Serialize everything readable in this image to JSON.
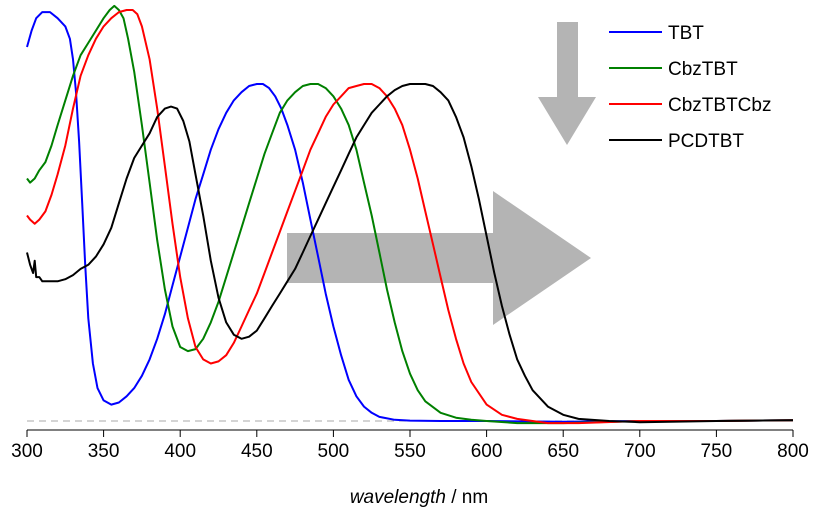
{
  "chart_data": {
    "type": "line",
    "title": "",
    "xlabel_italic": "wavelength",
    "xlabel_unit": " / nm",
    "ylabel": "",
    "xlim": [
      300,
      800
    ],
    "ylim": [
      -0.02,
      1.04
    ],
    "x_ticks": [
      "300",
      "350",
      "400",
      "450",
      "500",
      "550",
      "600",
      "650",
      "700",
      "750",
      "800"
    ],
    "baseline_dashed": true,
    "legend_position": "top-right",
    "annotations": [
      "down-arrow",
      "right-arrow"
    ],
    "series": [
      {
        "name": "TBT",
        "color": "#0000ff",
        "x": [
          300,
          303,
          306,
          310,
          315,
          320,
          325,
          328,
          330,
          332,
          334,
          336,
          338,
          340,
          343,
          346,
          350,
          355,
          360,
          365,
          370,
          375,
          380,
          385,
          390,
          395,
          400,
          405,
          410,
          415,
          420,
          425,
          430,
          435,
          440,
          445,
          450,
          454,
          458,
          462,
          466,
          470,
          475,
          480,
          485,
          490,
          495,
          500,
          505,
          510,
          515,
          520,
          525,
          530,
          540,
          550,
          570,
          600,
          650,
          700,
          750,
          800
        ],
        "y": [
          0.91,
          0.95,
          0.98,
          0.995,
          0.995,
          0.98,
          0.96,
          0.93,
          0.88,
          0.8,
          0.68,
          0.53,
          0.38,
          0.25,
          0.14,
          0.08,
          0.05,
          0.04,
          0.045,
          0.06,
          0.08,
          0.11,
          0.15,
          0.2,
          0.26,
          0.33,
          0.4,
          0.47,
          0.54,
          0.6,
          0.66,
          0.71,
          0.75,
          0.78,
          0.8,
          0.815,
          0.82,
          0.82,
          0.81,
          0.79,
          0.76,
          0.72,
          0.66,
          0.58,
          0.49,
          0.4,
          0.31,
          0.23,
          0.16,
          0.1,
          0.06,
          0.035,
          0.02,
          0.01,
          0.003,
          0.001,
          0.0,
          0.0,
          -0.002,
          0.0,
          0.0,
          0.002
        ]
      },
      {
        "name": "CbzTBT",
        "color": "#008000",
        "x": [
          300,
          302,
          305,
          308,
          312,
          316,
          320,
          325,
          330,
          335,
          340,
          345,
          350,
          354,
          357,
          360,
          363,
          366,
          370,
          375,
          380,
          385,
          390,
          395,
          400,
          405,
          410,
          415,
          420,
          425,
          430,
          435,
          440,
          445,
          450,
          455,
          460,
          465,
          470,
          475,
          480,
          485,
          490,
          495,
          500,
          505,
          510,
          515,
          520,
          525,
          530,
          535,
          540,
          545,
          550,
          555,
          560,
          570,
          580,
          590,
          600,
          620,
          650,
          700,
          750,
          800
        ],
        "y": [
          0.59,
          0.58,
          0.59,
          0.61,
          0.63,
          0.67,
          0.72,
          0.78,
          0.84,
          0.89,
          0.92,
          0.95,
          0.98,
          1.0,
          1.01,
          1.0,
          0.98,
          0.93,
          0.85,
          0.72,
          0.58,
          0.44,
          0.32,
          0.23,
          0.18,
          0.17,
          0.175,
          0.2,
          0.24,
          0.29,
          0.35,
          0.41,
          0.47,
          0.53,
          0.59,
          0.65,
          0.7,
          0.75,
          0.78,
          0.8,
          0.815,
          0.82,
          0.82,
          0.81,
          0.79,
          0.76,
          0.72,
          0.66,
          0.58,
          0.5,
          0.41,
          0.32,
          0.24,
          0.17,
          0.115,
          0.075,
          0.048,
          0.02,
          0.008,
          0.003,
          0.0,
          -0.005,
          -0.005,
          0.0,
          0.0,
          0.002
        ]
      },
      {
        "name": "CbzTBTCbz",
        "color": "#ff0000",
        "x": [
          300,
          302,
          305,
          308,
          312,
          316,
          320,
          325,
          330,
          335,
          340,
          345,
          350,
          355,
          360,
          365,
          369,
          372,
          375,
          380,
          385,
          390,
          395,
          400,
          405,
          410,
          415,
          420,
          425,
          430,
          435,
          440,
          445,
          450,
          455,
          460,
          465,
          470,
          475,
          480,
          485,
          490,
          495,
          500,
          505,
          510,
          515,
          520,
          525,
          530,
          535,
          540,
          545,
          550,
          555,
          560,
          565,
          570,
          575,
          580,
          585,
          590,
          600,
          610,
          620,
          640,
          660,
          700,
          750,
          800
        ],
        "y": [
          0.5,
          0.49,
          0.48,
          0.49,
          0.51,
          0.55,
          0.6,
          0.67,
          0.76,
          0.84,
          0.89,
          0.93,
          0.96,
          0.98,
          0.995,
          1.0,
          1.0,
          0.99,
          0.96,
          0.88,
          0.76,
          0.62,
          0.48,
          0.35,
          0.25,
          0.18,
          0.15,
          0.14,
          0.145,
          0.16,
          0.19,
          0.23,
          0.27,
          0.31,
          0.36,
          0.41,
          0.46,
          0.51,
          0.56,
          0.61,
          0.66,
          0.7,
          0.74,
          0.77,
          0.79,
          0.81,
          0.815,
          0.82,
          0.82,
          0.81,
          0.79,
          0.76,
          0.72,
          0.66,
          0.59,
          0.51,
          0.43,
          0.35,
          0.27,
          0.2,
          0.14,
          0.095,
          0.04,
          0.015,
          0.005,
          -0.005,
          -0.005,
          0.0,
          0.0,
          0.002
        ]
      },
      {
        "name": "PCDTBT",
        "color": "#000000",
        "x": [
          300,
          302,
          304,
          305,
          306,
          308,
          310,
          315,
          320,
          325,
          330,
          335,
          340,
          345,
          350,
          355,
          360,
          365,
          370,
          375,
          380,
          385,
          390,
          394,
          398,
          402,
          406,
          410,
          415,
          420,
          425,
          430,
          435,
          440,
          445,
          450,
          455,
          460,
          465,
          470,
          475,
          480,
          485,
          490,
          495,
          500,
          505,
          510,
          515,
          520,
          525,
          530,
          535,
          540,
          545,
          550,
          555,
          560,
          565,
          570,
          575,
          580,
          585,
          590,
          595,
          600,
          605,
          610,
          615,
          620,
          625,
          630,
          640,
          650,
          660,
          680,
          700,
          750,
          800
        ],
        "y": [
          0.41,
          0.38,
          0.36,
          0.39,
          0.35,
          0.35,
          0.34,
          0.34,
          0.34,
          0.345,
          0.355,
          0.37,
          0.38,
          0.4,
          0.43,
          0.47,
          0.53,
          0.59,
          0.64,
          0.67,
          0.7,
          0.74,
          0.76,
          0.765,
          0.76,
          0.73,
          0.68,
          0.6,
          0.5,
          0.39,
          0.3,
          0.24,
          0.21,
          0.2,
          0.205,
          0.22,
          0.25,
          0.28,
          0.31,
          0.34,
          0.37,
          0.41,
          0.45,
          0.49,
          0.53,
          0.57,
          0.61,
          0.65,
          0.69,
          0.72,
          0.75,
          0.77,
          0.79,
          0.805,
          0.815,
          0.82,
          0.82,
          0.82,
          0.815,
          0.8,
          0.78,
          0.74,
          0.69,
          0.62,
          0.54,
          0.45,
          0.36,
          0.28,
          0.21,
          0.15,
          0.11,
          0.075,
          0.035,
          0.015,
          0.005,
          0.0,
          -0.003,
          0.0,
          0.002
        ]
      }
    ]
  }
}
